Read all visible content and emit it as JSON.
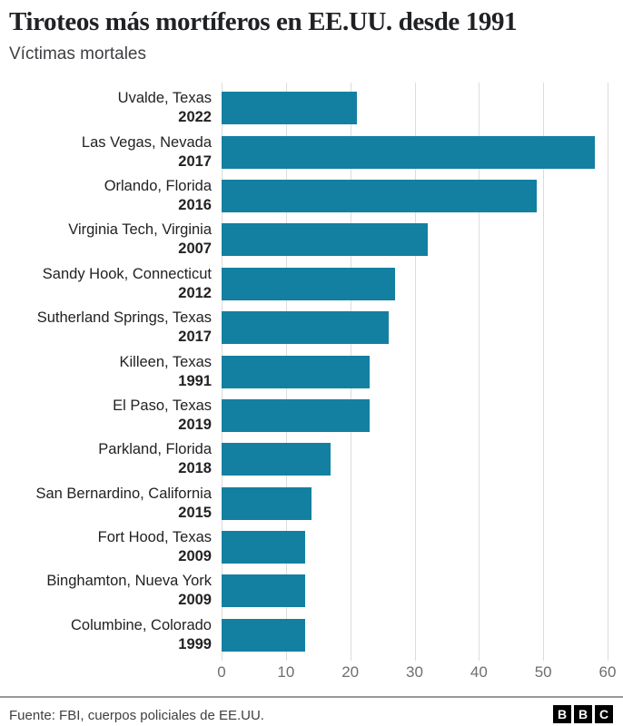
{
  "chart_data": {
    "type": "bar",
    "orientation": "horizontal",
    "title": "Tiroteos más mortíferos en EE.UU. desde 1991",
    "subtitle": "Víctimas mortales",
    "categories": [
      "Uvalde, Texas",
      "Las Vegas, Nevada",
      "Orlando, Florida",
      "Virginia Tech, Virginia",
      "Sandy Hook, Connecticut",
      "Sutherland Springs, Texas",
      "Killeen, Texas",
      "El Paso, Texas",
      "Parkland, Florida",
      "San Bernardino, California",
      "Fort Hood, Texas",
      "Binghamton, Nueva York",
      "Columbine, Colorado"
    ],
    "years": [
      "2022",
      "2017",
      "2016",
      "2007",
      "2012",
      "2017",
      "1991",
      "2019",
      "2018",
      "2015",
      "2009",
      "2009",
      "1999"
    ],
    "values": [
      21,
      58,
      49,
      32,
      27,
      26,
      23,
      23,
      17,
      14,
      13,
      13,
      13
    ],
    "xlim": [
      0,
      60
    ],
    "ticks": [
      0,
      10,
      20,
      30,
      40,
      50,
      60
    ],
    "grid": true,
    "legend": "none",
    "bar_color": "#1380A1"
  },
  "footer": {
    "source": "Fuente: FBI, cuerpos policiales de EE.UU.",
    "logo_letters": [
      "B",
      "B",
      "C"
    ]
  }
}
